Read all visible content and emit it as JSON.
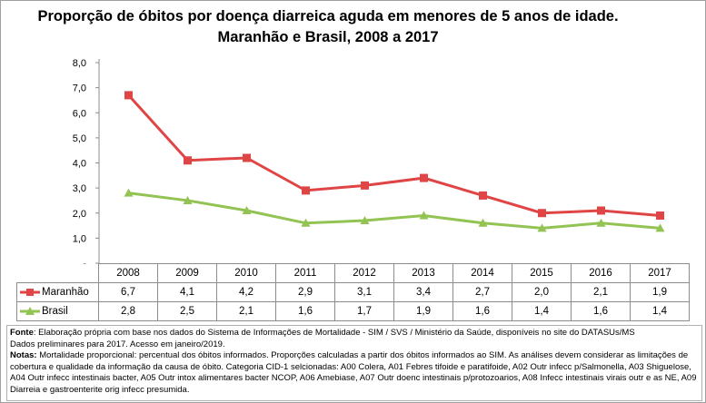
{
  "chart_data": {
    "type": "line",
    "title": "Proporção de óbitos por doença diarreica aguda em menores de 5 anos de idade. Maranhão e Brasil, 2008 a 2017",
    "categories": [
      "2008",
      "2009",
      "2010",
      "2011",
      "2012",
      "2013",
      "2014",
      "2015",
      "2016",
      "2017"
    ],
    "ylim": [
      0,
      8
    ],
    "yticks": [
      "-",
      "1,0",
      "2,0",
      "3,0",
      "4,0",
      "5,0",
      "6,0",
      "7,0",
      "8,0"
    ],
    "grid": false,
    "legend": "data-table-bottom",
    "series": [
      {
        "name": "Maranhão",
        "color": "#e04545",
        "marker": "square",
        "values": [
          6.7,
          4.1,
          4.2,
          2.9,
          3.1,
          3.4,
          2.7,
          2.0,
          2.1,
          1.9
        ],
        "labels": [
          "6,7",
          "4,1",
          "4,2",
          "2,9",
          "3,1",
          "3,4",
          "2,7",
          "2,0",
          "2,1",
          "1,9"
        ]
      },
      {
        "name": "Brasil",
        "color": "#92c353",
        "marker": "triangle",
        "values": [
          2.8,
          2.5,
          2.1,
          1.6,
          1.7,
          1.9,
          1.6,
          1.4,
          1.6,
          1.4
        ],
        "labels": [
          "2,8",
          "2,5",
          "2,1",
          "1,6",
          "1,7",
          "1,9",
          "1,6",
          "1,4",
          "1,6",
          "1,4"
        ]
      }
    ]
  },
  "notes": {
    "fonte_label": "Fonte",
    "fonte_text": ": Elaboração própria com base nos dados do Sistema de Informações de Mortalidade - SIM / SVS / Ministério da Saúde, disponíveis no site do DATASUs/MS",
    "fonte_text2": "Dados preliminares para 2017. Acesso em janeiro/2019.",
    "notas_label": "Notas:",
    "notas_text": " Mortalidade proporcional: percentual dos óbitos informados. Proporções calculadas a partir dos óbitos informados ao SIM. As análises devem considerar as limitações de cobertura e qualidade da informação da causa de óbito. Categoria CID-1 selcionadas: A00 Colera, A01 Febres tifoide e paratifoide, A02 Outr infecc p/Salmonella, A03 Shiguelose, A04 Outr infecc intestinais bacter, A05 Outr intox alimentares bacter NCOP, A06 Amebiase, A07 Outr doenc intestinais p/protozoarios, A08 Infecc intestinais virais outr e as NE, A09 Diarreia e gastroenterite orig infecc presumida."
  }
}
